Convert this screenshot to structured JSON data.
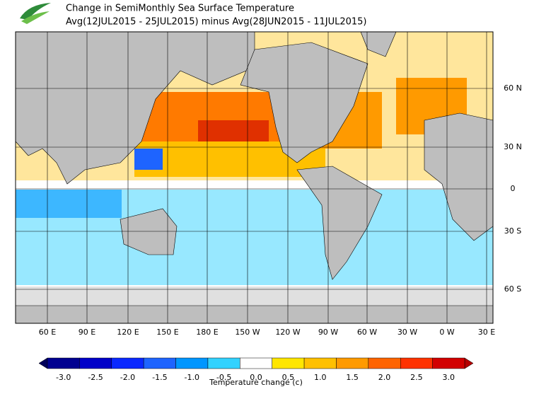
{
  "header": {
    "title": "Change in SemiMonthly Sea Surface Temperature",
    "subtitle": "Avg(12JUL2015 - 25JUL2015) minus Avg(28JUN2015 - 11JUL2015)"
  },
  "map": {
    "lon_labels": [
      "60 E",
      "90 E",
      "120 E",
      "150 E",
      "180 E",
      "150 W",
      "120 W",
      "90 W",
      "60 W",
      "30 W",
      "0 W",
      "30 E"
    ],
    "lat_labels": [
      "60 N",
      "30 N",
      "0",
      "30 S",
      "60 S"
    ]
  },
  "colorbar": {
    "label": "Temperature change  (c)",
    "ticks": [
      {
        "value": -3,
        "label": "-3.0"
      },
      {
        "value": -2.5,
        "label": "-2.5"
      },
      {
        "value": -2,
        "label": "-2.0"
      },
      {
        "value": -1.5,
        "label": "-1.5"
      },
      {
        "value": -1,
        "label": "-1.0"
      },
      {
        "value": -0.5,
        "label": "-0.5"
      },
      {
        "value": 0,
        "label": "0.0"
      },
      {
        "value": 0.5,
        "label": "0.5"
      },
      {
        "value": 1,
        "label": "1.0"
      },
      {
        "value": 1.5,
        "label": "1.5"
      },
      {
        "value": 2,
        "label": "2.0"
      },
      {
        "value": 2.5,
        "label": "2.5"
      },
      {
        "value": 3,
        "label": "3.0"
      }
    ],
    "colors": [
      "#000090",
      "#0000c8",
      "#0a28ff",
      "#1e64ff",
      "#0096ff",
      "#32d2ff",
      "#ffffff",
      "#ffe600",
      "#ffc000",
      "#ff9a00",
      "#ff6400",
      "#ff3200",
      "#d20000"
    ],
    "low_color": "#00005a",
    "high_color": "#b40000"
  }
}
